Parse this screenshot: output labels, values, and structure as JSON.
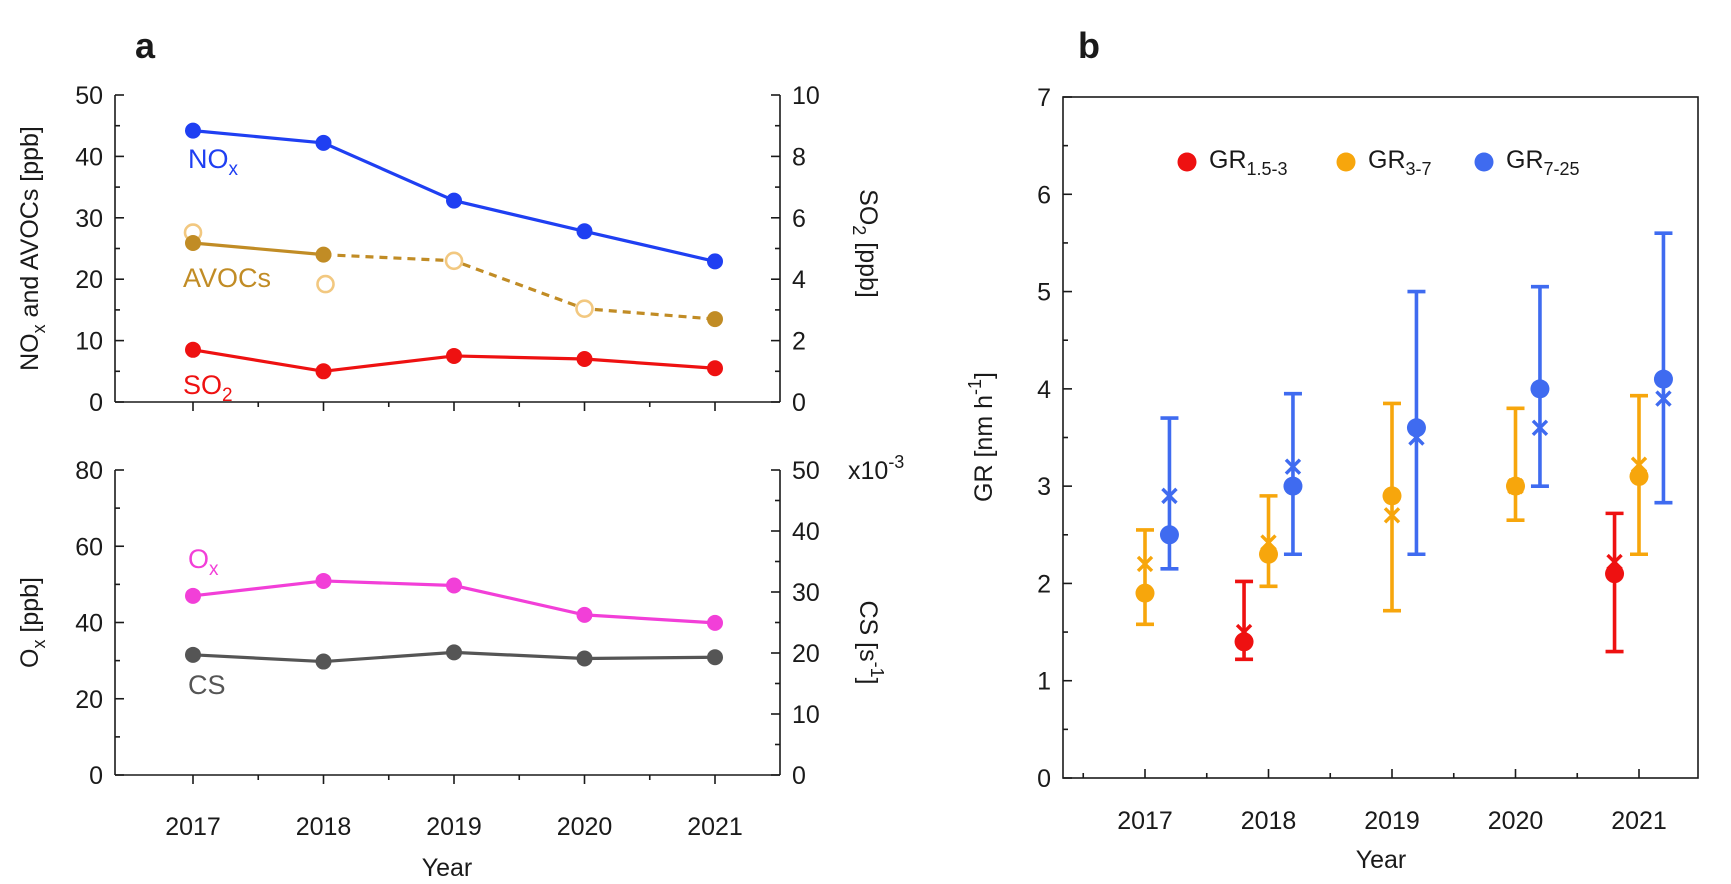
{
  "chart_data": [
    {
      "panel": "a",
      "type": "line",
      "x": [
        2017,
        2018,
        2019,
        2020,
        2021
      ],
      "xlabel": "Year",
      "x_ticks": [
        "2017",
        "2018",
        "2019",
        "2020",
        "2021"
      ],
      "subplots": [
        {
          "name": "top",
          "ylabel_left": {
            "main": "NO",
            "sub": "x",
            "rest": " and AVOCs [ppb]"
          },
          "ylabel_right": {
            "main": "SO",
            "sub": "2",
            "rest": " [ppb]"
          },
          "ylim_left": [
            0,
            50
          ],
          "ylim_right": [
            0,
            10
          ],
          "yticks_left": [
            "0",
            "10",
            "20",
            "30",
            "40",
            "50"
          ],
          "yticks_right": [
            "0",
            "2",
            "4",
            "6",
            "8",
            "10"
          ],
          "series": [
            {
              "name": "NOx",
              "label": {
                "main": "NO",
                "sub": "x"
              },
              "color": "#1f3ff2",
              "axis": "left",
              "values": [
                44.2,
                42.2,
                32.8,
                27.8,
                22.9
              ]
            },
            {
              "name": "AVOCs",
              "label": {
                "main": "AVOCs",
                "sub": ""
              },
              "color": "#c18c25",
              "axis": "left",
              "values": [
                25.9,
                24.0,
                null,
                null,
                13.5
              ],
              "dashed_from_index": 1,
              "open_markers": [
                27.6,
                19.2,
                23.0,
                15.2,
                null
              ]
            },
            {
              "name": "SO2",
              "label": {
                "main": "SO",
                "sub": "2"
              },
              "color": "#ee1111",
              "axis": "right",
              "values": [
                1.7,
                1.0,
                1.5,
                1.4,
                1.1
              ]
            }
          ]
        },
        {
          "name": "bottom",
          "ylabel_left": {
            "main": "O",
            "sub": "x",
            "rest": " [ppb]"
          },
          "ylabel_right": {
            "main": "CS [s",
            "sup": "-1",
            "rest": "]"
          },
          "ylim_left": [
            0,
            80
          ],
          "ylim_right": [
            0,
            50
          ],
          "yticks_left": [
            "0",
            "20",
            "40",
            "60",
            "80"
          ],
          "yticks_right": [
            "0",
            "10",
            "20",
            "30",
            "40",
            "50"
          ],
          "right_exponent": {
            "main": "x10",
            "sup": "-3"
          },
          "series": [
            {
              "name": "Ox",
              "label": {
                "main": "O",
                "sub": "x"
              },
              "color": "#f23fd8",
              "axis": "left",
              "values": [
                47.0,
                50.9,
                49.7,
                42.0,
                39.9
              ]
            },
            {
              "name": "CS",
              "label": {
                "main": "CS",
                "sub": ""
              },
              "color": "#555555",
              "axis": "right",
              "values": [
                19.7,
                18.6,
                20.1,
                19.1,
                19.3
              ]
            }
          ]
        }
      ]
    },
    {
      "panel": "b",
      "type": "scatter",
      "x": [
        2017,
        2018,
        2019,
        2020,
        2021
      ],
      "xlabel": "Year",
      "x_ticks": [
        "2017",
        "2018",
        "2019",
        "2020",
        "2021"
      ],
      "ylabel": {
        "main": "GR [nm h",
        "sup": "-1",
        "rest": "]"
      },
      "ylim": [
        0,
        7
      ],
      "yticks": [
        "0",
        "1",
        "2",
        "3",
        "4",
        "5",
        "6",
        "7"
      ],
      "legend_position": "top",
      "series": [
        {
          "name": "GR1.5-3",
          "label": {
            "main": "GR",
            "sub": "1.5-3"
          },
          "color": "#ee1111",
          "offset": -0.33,
          "points": [
            null,
            {
              "mean": 1.4,
              "median": 1.5,
              "low": 1.22,
              "high": 2.02
            },
            null,
            null,
            {
              "mean": 2.1,
              "median": 2.22,
              "low": 1.3,
              "high": 2.72
            }
          ]
        },
        {
          "name": "GR3-7",
          "label": {
            "main": "GR",
            "sub": "3-7"
          },
          "color": "#f7a60c",
          "offset": 0,
          "points": [
            {
              "mean": 1.9,
              "median": 2.2,
              "low": 1.58,
              "high": 2.55
            },
            {
              "mean": 2.3,
              "median": 2.42,
              "low": 1.97,
              "high": 2.9
            },
            {
              "mean": 2.9,
              "median": 2.7,
              "low": 1.72,
              "high": 3.85
            },
            {
              "mean": 3.0,
              "median": 3.0,
              "low": 2.65,
              "high": 3.8
            },
            {
              "mean": 3.1,
              "median": 3.22,
              "low": 2.3,
              "high": 3.93
            }
          ]
        },
        {
          "name": "GR7-25",
          "label": {
            "main": "GR",
            "sub": "7-25"
          },
          "color": "#3f6bf0",
          "offset": 0.33,
          "points": [
            {
              "mean": 2.5,
              "median": 2.9,
              "low": 2.15,
              "high": 3.7
            },
            {
              "mean": 3.0,
              "median": 3.2,
              "low": 2.3,
              "high": 3.95
            },
            {
              "mean": 3.6,
              "median": 3.5,
              "low": 2.3,
              "high": 5.0
            },
            {
              "mean": 4.0,
              "median": 3.6,
              "low": 3.0,
              "high": 5.05
            },
            {
              "mean": 4.1,
              "median": 3.9,
              "low": 2.83,
              "high": 5.6
            }
          ]
        }
      ]
    }
  ]
}
